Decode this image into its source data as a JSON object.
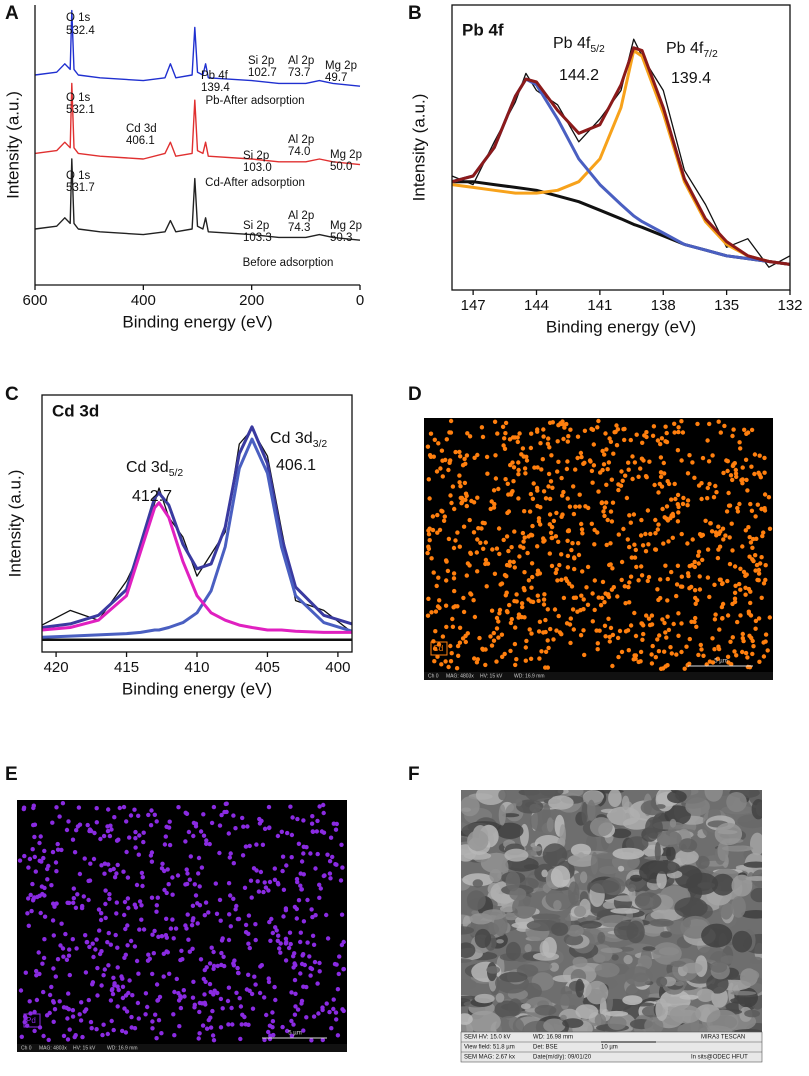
{
  "chart_data": [
    {
      "type": "line",
      "panel": "A",
      "xlabel": "Binding energy (eV)",
      "ylabel": "Intensity (a.u.)",
      "xlim": [
        600,
        0
      ],
      "xticks": [
        600,
        400,
        200,
        0
      ],
      "ylim": [
        0,
        100
      ],
      "x": [
        600,
        560,
        545,
        535,
        532,
        528,
        520,
        480,
        400,
        360,
        350,
        340,
        310,
        305,
        300,
        290,
        285,
        280,
        200,
        150,
        100,
        75,
        50,
        0
      ],
      "series": [
        {
          "color": "#2030d0",
          "values": [
            75,
            76,
            79,
            77,
            98,
            77,
            75,
            74,
            73,
            74,
            79,
            74,
            75,
            92,
            76,
            75,
            79,
            74,
            73,
            72,
            72,
            73,
            72,
            71
          ]
        },
        {
          "color": "#e03030",
          "values": [
            47,
            48,
            51,
            49,
            72,
            49,
            47,
            46,
            45,
            47,
            51,
            46,
            47,
            66,
            48,
            47,
            51,
            46,
            45,
            44,
            44,
            45,
            44,
            43
          ]
        },
        {
          "color": "#222222",
          "values": [
            20,
            21,
            24,
            22,
            45,
            22,
            20,
            19,
            18,
            19,
            23,
            19,
            20,
            38,
            21,
            20,
            24,
            19,
            18,
            17,
            17,
            18,
            17,
            16
          ]
        }
      ],
      "annotations": [
        {
          "text": "O 1s"
        },
        {
          "text": "532.4"
        },
        {
          "text": "Pb 4f"
        },
        {
          "text": "139.4"
        },
        {
          "text": "Si 2p"
        },
        {
          "text": "102.7"
        },
        {
          "text": "Al 2p"
        },
        {
          "text": "73.7"
        },
        {
          "text": "Mg 2p"
        },
        {
          "text": "49.7"
        },
        {
          "text": "Pb-After adsorption"
        },
        {
          "text": "O 1s"
        },
        {
          "text": "532.1"
        },
        {
          "text": "Cd 3d"
        },
        {
          "text": "406.1"
        },
        {
          "text": "Si 2p"
        },
        {
          "text": "103.0"
        },
        {
          "text": "Al 2p"
        },
        {
          "text": "74.0"
        },
        {
          "text": "Mg 2p"
        },
        {
          "text": "50.0"
        },
        {
          "text": "Cd-After adsorption"
        },
        {
          "text": "O 1s"
        },
        {
          "text": "531.7"
        },
        {
          "text": "Si 2p"
        },
        {
          "text": "103.3"
        },
        {
          "text": "Al 2p"
        },
        {
          "text": "74.3"
        },
        {
          "text": "Mg 2p"
        },
        {
          "text": "50.3"
        },
        {
          "text": "Before adsorption"
        }
      ]
    },
    {
      "type": "line",
      "panel": "B",
      "title": "Pb 4f",
      "xlabel": "Binding energy (eV)",
      "ylabel": "Intensity (a.u.)",
      "xlim": [
        148,
        132
      ],
      "xticks": [
        147,
        144,
        141,
        138,
        135,
        132
      ],
      "ylim": [
        0,
        100
      ],
      "x": [
        148,
        147,
        146,
        145,
        144.5,
        144,
        143,
        142,
        141,
        140,
        139.4,
        139,
        138,
        137,
        136,
        135,
        134,
        133,
        132
      ],
      "series": [
        {
          "color": "#111111",
          "width": 1.3,
          "values": [
            40,
            37,
            52,
            66,
            76,
            70,
            65,
            52,
            60,
            70,
            88,
            82,
            70,
            42,
            30,
            15,
            18,
            8,
            12
          ]
        },
        {
          "color": "#111111",
          "width": 3,
          "values": [
            38,
            38,
            37,
            36,
            35.5,
            35,
            33,
            31,
            28,
            25,
            23,
            22,
            19,
            16,
            14,
            12,
            11,
            10,
            9
          ]
        },
        {
          "color": "#f7a21b",
          "width": 3,
          "values": [
            37,
            36,
            35,
            34,
            34,
            34,
            35,
            38,
            46,
            64,
            84,
            82,
            62,
            38,
            24,
            16,
            12,
            10,
            9
          ]
        },
        {
          "color": "#4a5fc1",
          "width": 3,
          "values": [
            38,
            40,
            50,
            68,
            74,
            72,
            60,
            46,
            37,
            30,
            26,
            24,
            20,
            16,
            14,
            12,
            11,
            10,
            9
          ]
        },
        {
          "color": "#8b1a1a",
          "width": 3,
          "values": [
            38,
            40,
            50,
            68,
            74,
            73,
            63,
            55,
            58,
            72,
            85,
            84,
            64,
            39,
            25,
            17,
            12,
            10,
            9
          ]
        }
      ],
      "annotations": [
        {
          "text": "Pb 4f",
          "sub": "5/2"
        },
        {
          "text": "144.2"
        },
        {
          "text": "Pb 4f",
          "sub": "7/2"
        },
        {
          "text": "139.4"
        }
      ]
    },
    {
      "type": "line",
      "panel": "C",
      "title": "Cd 3d",
      "xlabel": "Binding energy (eV)",
      "ylabel": "Intensity (a.u.)",
      "xlim": [
        421,
        399
      ],
      "xticks": [
        420,
        415,
        410,
        405,
        400
      ],
      "ylim": [
        -5,
        100
      ],
      "x": [
        421,
        419,
        417,
        415,
        414,
        413,
        412.7,
        412,
        411,
        410,
        409,
        408,
        407,
        406.1,
        405,
        404,
        403,
        401,
        399
      ],
      "series": [
        {
          "color": "#111111",
          "width": 1.3,
          "values": [
            6,
            12,
            8,
            24,
            36,
            56,
            62,
            50,
            42,
            26,
            35,
            44,
            80,
            86,
            75,
            45,
            16,
            12,
            3
          ]
        },
        {
          "color": "#111111",
          "width": 2.5,
          "values": [
            0,
            0,
            0,
            0,
            0,
            0,
            0,
            0,
            0,
            0,
            0,
            0,
            0,
            0,
            0,
            0,
            0,
            0,
            0
          ]
        },
        {
          "color": "#3a3aa0",
          "width": 3,
          "values": [
            5,
            6.5,
            10,
            20.5,
            39,
            58,
            60,
            55,
            39,
            29,
            31,
            46,
            76,
            87,
            72,
            42,
            21.5,
            10,
            6.5
          ]
        },
        {
          "color": "#4a5fc1",
          "width": 3,
          "values": [
            1,
            1.5,
            2,
            2.5,
            3,
            4,
            4,
            5,
            7,
            11,
            20,
            38,
            70,
            82,
            68,
            38,
            18,
            7,
            3.5
          ]
        },
        {
          "color": "#e020c0",
          "width": 3,
          "values": [
            4,
            5,
            8,
            18,
            36,
            54,
            56,
            50,
            32,
            18,
            11,
            8,
            6,
            5,
            4,
            4,
            3.5,
            3,
            3
          ]
        }
      ],
      "annotations": [
        {
          "text": "Cd 3d",
          "sub": "5/2"
        },
        {
          "text": "412.7"
        },
        {
          "text": "Cd 3d",
          "sub": "3/2"
        },
        {
          "text": "406.1"
        }
      ]
    }
  ],
  "images": [
    {
      "panel": "D",
      "element": "Cd",
      "scale": "5 µm",
      "color": "#ff7f0e",
      "info": [
        "Ch 0",
        "MAG: 4803x",
        "HV: 15 kV",
        "WD: 16.9 mm"
      ]
    },
    {
      "panel": "E",
      "element": "Pd",
      "scale": "5 µm",
      "color": "#8a2be2",
      "info": [
        "Ch 0",
        "MAG: 4803x",
        "HV: 15 kV",
        "WD: 16.9 mm"
      ]
    },
    {
      "panel": "F",
      "info": [
        "SEM HV: 15.0 kV",
        "WD: 16.98 mm",
        "MIRA3 TESCAN",
        "View field: 51.8 µm",
        "Det: BSE",
        "10 µm",
        "SEM MAG: 2.67 kx",
        "Date(m/d/y): 09/01/20",
        "In sits@ODEC HFUT"
      ]
    }
  ]
}
